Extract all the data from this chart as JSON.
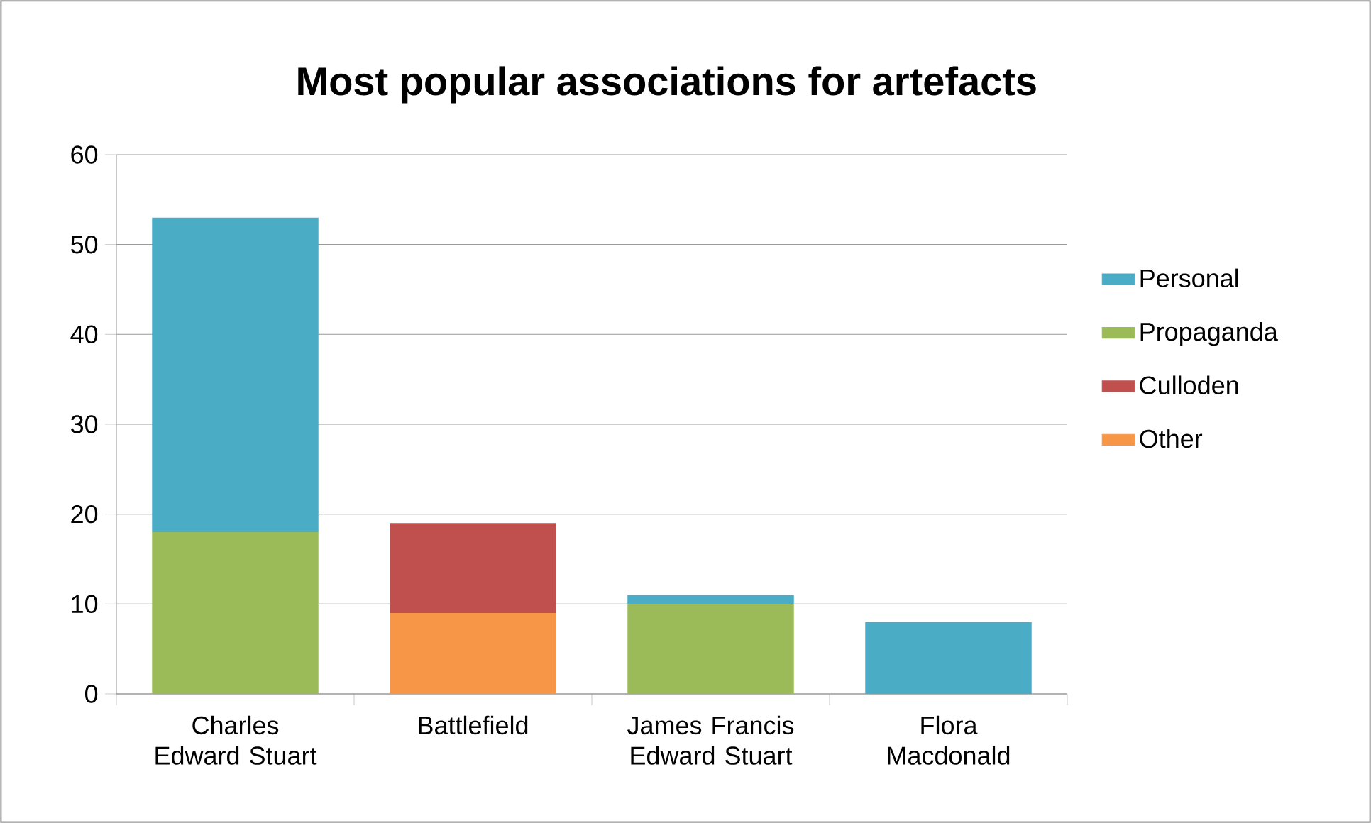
{
  "chart_data": {
    "type": "bar",
    "title": "Most popular associations for artefacts",
    "stacked": true,
    "categories": [
      "Charles Edward Stuart",
      "Battlefield",
      "James Francis Edward Stuart",
      "Flora Macdonald"
    ],
    "series": [
      {
        "name": "Other",
        "color": "#f79646",
        "values": [
          null,
          9,
          null,
          null
        ]
      },
      {
        "name": "Culloden",
        "color": "#c0504d",
        "values": [
          null,
          10,
          null,
          null
        ]
      },
      {
        "name": "Propaganda",
        "color": "#9bbb59",
        "values": [
          18,
          null,
          10,
          null
        ]
      },
      {
        "name": "Personal",
        "color": "#4bacc6",
        "values": [
          35,
          null,
          1,
          8
        ]
      }
    ],
    "ylim": [
      0,
      60
    ],
    "yticks": [
      0,
      10,
      20,
      30,
      40,
      50,
      60
    ],
    "grid": "y",
    "legend": "right"
  }
}
